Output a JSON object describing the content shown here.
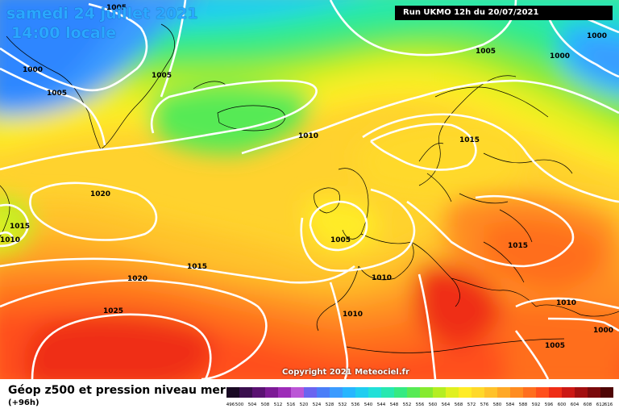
{
  "header": {
    "date": "samedi 24 juillet 2021",
    "time": "14:00 locale",
    "run": "Run UKMO 12h du 20/07/2021"
  },
  "footer": {
    "title": "Géop z500 et pression niveau mer",
    "subtitle": "(+96h)",
    "copyright": "Copyright 2021 Meteociel.fr"
  },
  "isobar_labels": [
    "1005",
    "1005",
    "1000",
    "1005",
    "1005",
    "1000",
    "1000",
    "1010",
    "1015",
    "1020",
    "1015",
    "1010",
    "1015",
    "1020",
    "1025",
    "1005",
    "1010",
    "1010",
    "1015",
    "1010",
    "1000",
    "1005"
  ],
  "legend": {
    "ticks": [
      "496",
      "500",
      "504",
      "508",
      "512",
      "516",
      "520",
      "524",
      "528",
      "532",
      "536",
      "540",
      "544",
      "548",
      "552",
      "556",
      "560",
      "564",
      "568",
      "572",
      "576",
      "580",
      "584",
      "588",
      "592",
      "596",
      "600",
      "604",
      "608",
      "612",
      "616"
    ],
    "colors": [
      "#1a0a24",
      "#3a0f4e",
      "#5a1272",
      "#7d1a96",
      "#9d2cb8",
      "#bb55d6",
      "#6a64f0",
      "#4a7ef8",
      "#3b9bff",
      "#27b6ff",
      "#20cdf0",
      "#22e0d8",
      "#27e8b0",
      "#35ea82",
      "#57ea55",
      "#86ea30",
      "#b4ee22",
      "#e0f020",
      "#ffec26",
      "#ffd92a",
      "#ffc22a",
      "#ffa826",
      "#ff8c20",
      "#ff6e1e",
      "#ff4f1c",
      "#ef2d16",
      "#cc1814",
      "#a20f10",
      "#7a0a0c",
      "#4e0606"
    ]
  },
  "colors": {
    "isobar": "#ffffff",
    "coast": "#000000",
    "run_box_bg": "#000000",
    "title_text": "#2aa8ff"
  }
}
